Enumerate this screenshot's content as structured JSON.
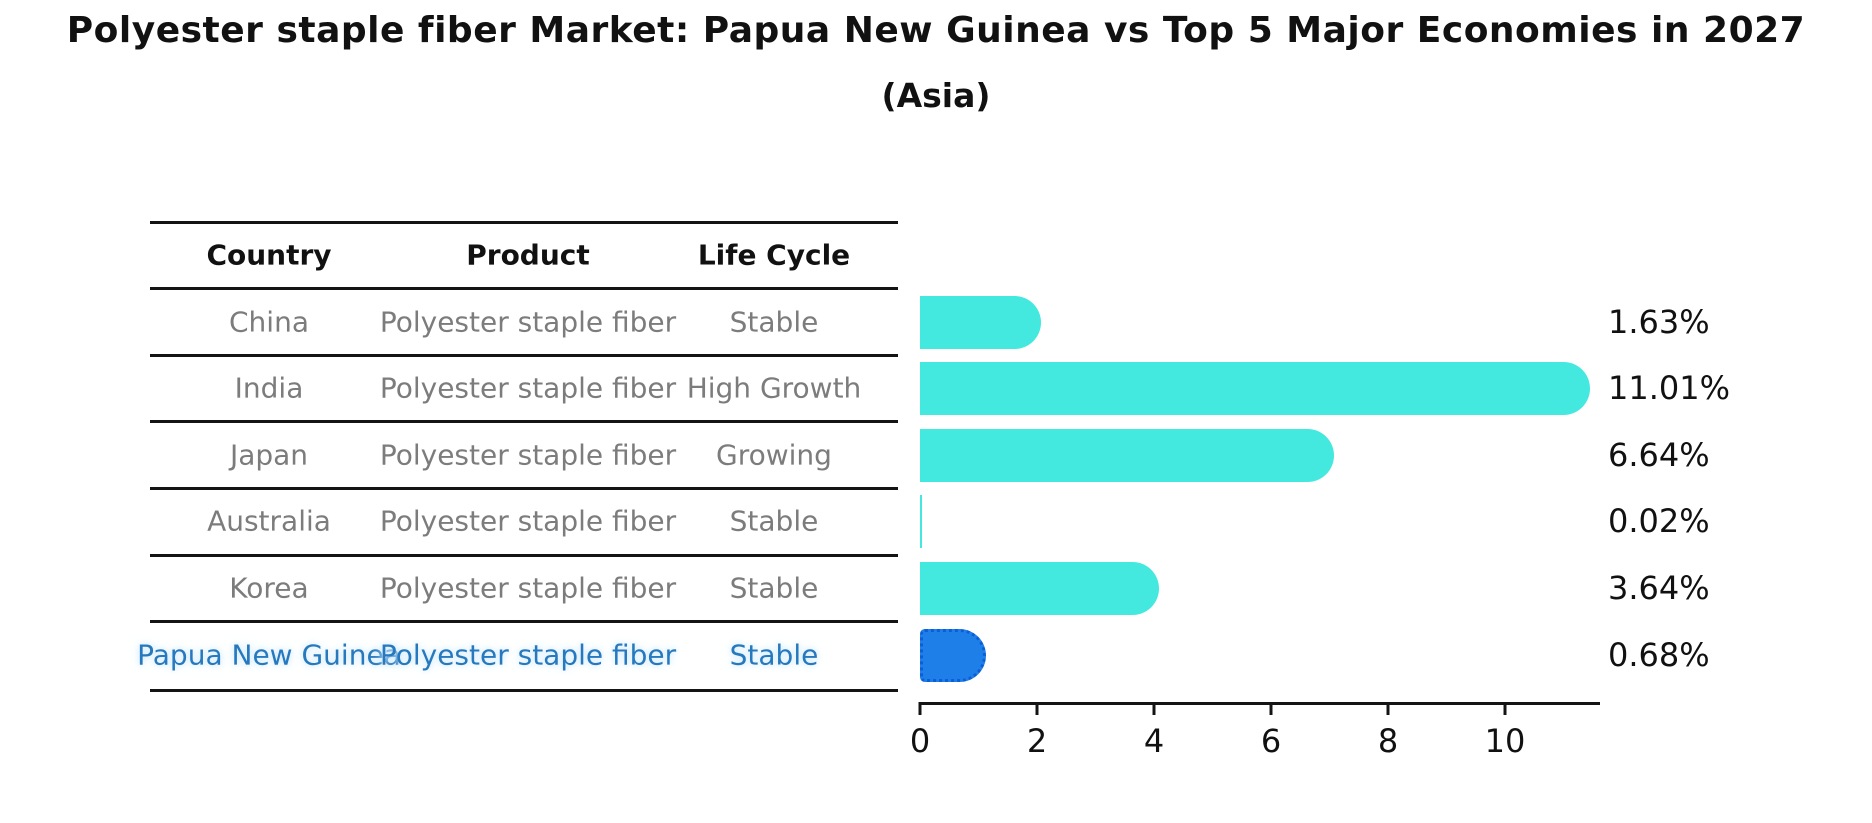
{
  "title": "Polyester staple fiber Market: Papua New Guinea vs Top 5 Major Economies in 2027",
  "subtitle": "(Asia)",
  "table": {
    "headers": [
      "Country",
      "Product",
      "Life Cycle"
    ],
    "rows": [
      {
        "country": "China",
        "product": "Polyester staple fiber",
        "life_cycle": "Stable",
        "highlight": false
      },
      {
        "country": "India",
        "product": "Polyester staple fiber",
        "life_cycle": "High Growth",
        "highlight": false
      },
      {
        "country": "Japan",
        "product": "Polyester staple fiber",
        "life_cycle": "Growing",
        "highlight": false
      },
      {
        "country": "Australia",
        "product": "Polyester staple fiber",
        "life_cycle": "Stable",
        "highlight": false
      },
      {
        "country": "Korea",
        "product": "Polyester staple fiber",
        "life_cycle": "Stable",
        "highlight": false
      },
      {
        "country": "Papua New Guinea",
        "product": "Polyester staple fiber",
        "life_cycle": "Stable",
        "highlight": true
      }
    ]
  },
  "chart_data": {
    "type": "bar",
    "orientation": "horizontal",
    "categories": [
      "China",
      "India",
      "Japan",
      "Australia",
      "Korea",
      "Papua New Guinea"
    ],
    "values": [
      1.63,
      11.01,
      6.64,
      0.02,
      3.64,
      0.68
    ],
    "value_labels": [
      "1.63%",
      "11.01%",
      "6.64%",
      "0.02%",
      "3.64%",
      "0.68%"
    ],
    "xlim": [
      0,
      11.6
    ],
    "x_ticks": [
      "0",
      "2",
      "4",
      "6",
      "8",
      "10"
    ],
    "x_tick_values": [
      0,
      2,
      4,
      6,
      8,
      10
    ],
    "grid": false,
    "legend": false,
    "bar_color": "#43e8df",
    "highlight_color": "#1e7fe8",
    "highlight_index": 5,
    "highlight_text_color": "#2779be"
  }
}
